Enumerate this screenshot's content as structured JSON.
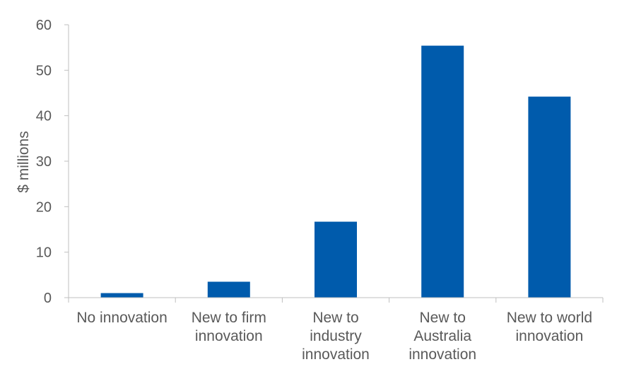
{
  "chart_data": {
    "type": "bar",
    "title": "",
    "xlabel": "",
    "ylabel": "$ millions",
    "ylim": [
      0,
      60
    ],
    "yticks": [
      0,
      10,
      20,
      30,
      40,
      50,
      60
    ],
    "grid": false,
    "legend": "none",
    "categories": [
      [
        "No innovation"
      ],
      [
        "New to firm",
        "innovation"
      ],
      [
        "New to",
        "industry",
        "innovation"
      ],
      [
        "New to",
        "Australia",
        "innovation"
      ],
      [
        "New to world",
        "innovation"
      ]
    ],
    "values": [
      1.0,
      3.5,
      16.7,
      55.4,
      44.2
    ],
    "colors": {
      "bar": "#005BAC",
      "axis": "#BFBFBF",
      "text": "#595959"
    }
  }
}
